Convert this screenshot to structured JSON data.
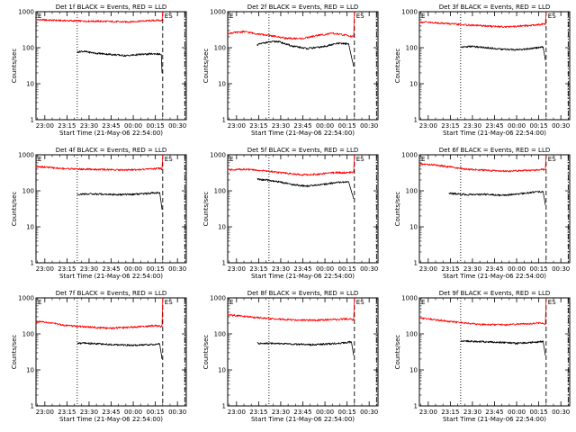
{
  "figure": {
    "xlabel": "Start Time (21-May-06 22:54:00)",
    "ylabel": "Counts/sec",
    "marker_label": "ES",
    "colors": {
      "events": "#000000",
      "lld": "#ff0000",
      "axis": "#000000",
      "background": "#ffffff"
    }
  },
  "chart_data": [
    {
      "type": "line",
      "title": "Det 1f BLACK = Events, RED = LLD",
      "x_ticks": [
        "23:00",
        "23:15",
        "23:30",
        "23:45",
        "00:00",
        "00:15",
        "00:30"
      ],
      "y_ticks": [
        "1",
        "10",
        "100",
        "1000"
      ],
      "y_scale": "log",
      "ylim": [
        1,
        1000
      ],
      "x_range_minutes": [
        -6,
        96
      ],
      "vertical_lines": {
        "dotted": 22,
        "dashed": 80,
        "dash_dot": 95
      },
      "series": [
        {
          "color": "red",
          "x": [
            -6,
            10,
            25,
            40,
            55,
            70,
            78,
            79.5,
            80
          ],
          "y": [
            600,
            570,
            550,
            540,
            520,
            560,
            580,
            560,
            1000
          ]
        },
        {
          "color": "black",
          "x": [
            22,
            25,
            35,
            45,
            55,
            65,
            75,
            79,
            79.5
          ],
          "y": [
            75,
            80,
            70,
            65,
            60,
            65,
            68,
            65,
            20
          ]
        }
      ]
    },
    {
      "type": "line",
      "title": "Det 2f BLACK = Events, RED = LLD",
      "x_ticks": [
        "23:00",
        "23:15",
        "23:30",
        "23:45",
        "00:00",
        "00:15",
        "00:30"
      ],
      "y_ticks": [
        "1",
        "10",
        "100",
        "1000"
      ],
      "y_scale": "log",
      "ylim": [
        1,
        1000
      ],
      "x_range_minutes": [
        -6,
        96
      ],
      "vertical_lines": {
        "dotted": 22,
        "dashed": 80,
        "dash_dot": 95
      },
      "series": [
        {
          "color": "red",
          "x": [
            -6,
            5,
            15,
            25,
            35,
            45,
            55,
            65,
            75,
            79.5,
            80
          ],
          "y": [
            250,
            280,
            240,
            210,
            180,
            180,
            220,
            250,
            220,
            200,
            1000
          ]
        },
        {
          "color": "black",
          "x": [
            14,
            20,
            28,
            38,
            48,
            58,
            68,
            76,
            79.5
          ],
          "y": [
            120,
            140,
            150,
            110,
            95,
            105,
            130,
            130,
            30
          ]
        }
      ]
    },
    {
      "type": "line",
      "title": "Det 3f BLACK = Events, RED = LLD",
      "x_ticks": [
        "23:00",
        "23:15",
        "23:30",
        "23:45",
        "00:00",
        "00:15",
        "00:30"
      ],
      "y_ticks": [
        "1",
        "10",
        "100",
        "1000"
      ],
      "y_scale": "log",
      "ylim": [
        1,
        1000
      ],
      "x_range_minutes": [
        -6,
        96
      ],
      "vertical_lines": {
        "dotted": 22,
        "dashed": 80,
        "dash_dot": 95
      },
      "series": [
        {
          "color": "red",
          "x": [
            -6,
            10,
            25,
            40,
            55,
            70,
            78,
            79.5,
            80
          ],
          "y": [
            520,
            480,
            430,
            400,
            380,
            420,
            450,
            430,
            1000
          ]
        },
        {
          "color": "black",
          "x": [
            22,
            30,
            40,
            50,
            60,
            70,
            78,
            79.5
          ],
          "y": [
            105,
            108,
            100,
            90,
            88,
            95,
            105,
            45
          ]
        }
      ]
    },
    {
      "type": "line",
      "title": "Det 4f BLACK = Events, RED = LLD",
      "x_ticks": [
        "23:00",
        "23:15",
        "23:30",
        "23:45",
        "00:00",
        "00:15",
        "00:30"
      ],
      "y_ticks": [
        "1",
        "10",
        "100",
        "1000"
      ],
      "y_scale": "log",
      "ylim": [
        1,
        1000
      ],
      "x_range_minutes": [
        -6,
        96
      ],
      "vertical_lines": {
        "dotted": 22,
        "dashed": 80,
        "dash_dot": 95
      },
      "series": [
        {
          "color": "red",
          "x": [
            -6,
            10,
            25,
            40,
            55,
            70,
            78,
            79.5,
            80
          ],
          "y": [
            480,
            420,
            400,
            390,
            380,
            400,
            420,
            400,
            1000
          ]
        },
        {
          "color": "black",
          "x": [
            22,
            30,
            40,
            50,
            60,
            70,
            78,
            79.5
          ],
          "y": [
            80,
            82,
            80,
            78,
            80,
            85,
            90,
            30
          ]
        }
      ]
    },
    {
      "type": "line",
      "title": "Det 5f BLACK = Events, RED = LLD",
      "x_ticks": [
        "23:00",
        "23:15",
        "23:30",
        "23:45",
        "00:00",
        "00:15",
        "00:30"
      ],
      "y_ticks": [
        "1",
        "10",
        "100",
        "1000"
      ],
      "y_scale": "log",
      "ylim": [
        1,
        1000
      ],
      "x_range_minutes": [
        -6,
        96
      ],
      "vertical_lines": {
        "dotted": 22,
        "dashed": 80,
        "dash_dot": 95
      },
      "series": [
        {
          "color": "red",
          "x": [
            -6,
            5,
            15,
            25,
            35,
            45,
            55,
            65,
            75,
            79.5,
            80
          ],
          "y": [
            380,
            400,
            370,
            340,
            300,
            280,
            290,
            320,
            320,
            330,
            1000
          ]
        },
        {
          "color": "black",
          "x": [
            14,
            20,
            28,
            38,
            48,
            58,
            68,
            76,
            79.5
          ],
          "y": [
            210,
            200,
            180,
            150,
            135,
            150,
            170,
            180,
            60
          ]
        }
      ]
    },
    {
      "type": "line",
      "title": "Det 6f BLACK = Events, RED = LLD",
      "x_ticks": [
        "23:00",
        "23:15",
        "23:30",
        "23:45",
        "00:00",
        "00:15",
        "00:30"
      ],
      "y_ticks": [
        "1",
        "10",
        "100",
        "1000"
      ],
      "y_scale": "log",
      "ylim": [
        1,
        1000
      ],
      "x_range_minutes": [
        -6,
        96
      ],
      "vertical_lines": {
        "dotted": 22,
        "dashed": 80,
        "dash_dot": 95
      },
      "series": [
        {
          "color": "red",
          "x": [
            -6,
            5,
            15,
            25,
            35,
            45,
            55,
            65,
            75,
            79.5,
            80
          ],
          "y": [
            560,
            520,
            460,
            400,
            380,
            360,
            350,
            370,
            380,
            400,
            1000
          ]
        },
        {
          "color": "black",
          "x": [
            14,
            22,
            30,
            40,
            50,
            60,
            70,
            78,
            79.5
          ],
          "y": [
            85,
            80,
            78,
            80,
            75,
            80,
            90,
            95,
            40
          ]
        }
      ]
    },
    {
      "type": "line",
      "title": "Det 7f BLACK = Events, RED = LLD",
      "x_ticks": [
        "23:00",
        "23:15",
        "23:30",
        "23:45",
        "00:00",
        "00:15",
        "00:30"
      ],
      "y_ticks": [
        "1",
        "10",
        "100",
        "1000"
      ],
      "y_scale": "log",
      "ylim": [
        1,
        1000
      ],
      "x_range_minutes": [
        -6,
        96
      ],
      "vertical_lines": {
        "dotted": 22,
        "dashed": 80,
        "dash_dot": 95
      },
      "series": [
        {
          "color": "red",
          "x": [
            -6,
            5,
            15,
            25,
            35,
            45,
            55,
            65,
            75,
            79.5,
            80
          ],
          "y": [
            220,
            200,
            170,
            160,
            150,
            145,
            150,
            160,
            170,
            160,
            1000
          ]
        },
        {
          "color": "black",
          "x": [
            22,
            30,
            40,
            50,
            60,
            70,
            78,
            79.5
          ],
          "y": [
            55,
            55,
            52,
            50,
            48,
            50,
            52,
            20
          ]
        }
      ]
    },
    {
      "type": "line",
      "title": "Det 8f BLACK = Events, RED = LLD",
      "x_ticks": [
        "23:00",
        "23:15",
        "23:30",
        "23:45",
        "00:00",
        "00:15",
        "00:30"
      ],
      "y_ticks": [
        "1",
        "10",
        "100",
        "1000"
      ],
      "y_scale": "log",
      "ylim": [
        1,
        1000
      ],
      "x_range_minutes": [
        -6,
        96
      ],
      "vertical_lines": {
        "dotted": 22,
        "dashed": 80,
        "dash_dot": 95
      },
      "series": [
        {
          "color": "red",
          "x": [
            -6,
            5,
            15,
            25,
            35,
            45,
            55,
            65,
            75,
            79.5,
            80
          ],
          "y": [
            340,
            310,
            280,
            260,
            250,
            240,
            240,
            250,
            260,
            250,
            1000
          ]
        },
        {
          "color": "black",
          "x": [
            14,
            22,
            30,
            40,
            50,
            60,
            70,
            78,
            79.5
          ],
          "y": [
            55,
            55,
            53,
            52,
            50,
            52,
            55,
            60,
            25
          ]
        }
      ]
    },
    {
      "type": "line",
      "title": "Det 9f BLACK = Events, RED = LLD",
      "x_ticks": [
        "23:00",
        "23:15",
        "23:30",
        "23:45",
        "00:00",
        "00:15",
        "00:30"
      ],
      "y_ticks": [
        "1",
        "10",
        "100",
        "1000"
      ],
      "y_scale": "log",
      "ylim": [
        1,
        1000
      ],
      "x_range_minutes": [
        -6,
        96
      ],
      "vertical_lines": {
        "dotted": 22,
        "dashed": 80,
        "dash_dot": 95
      },
      "series": [
        {
          "color": "red",
          "x": [
            -6,
            5,
            15,
            25,
            35,
            45,
            55,
            65,
            75,
            79.5,
            80
          ],
          "y": [
            280,
            250,
            220,
            200,
            185,
            180,
            180,
            190,
            200,
            190,
            1000
          ]
        },
        {
          "color": "black",
          "x": [
            22,
            30,
            40,
            50,
            60,
            70,
            78,
            79.5
          ],
          "y": [
            65,
            62,
            60,
            58,
            55,
            58,
            62,
            25
          ]
        }
      ]
    }
  ]
}
